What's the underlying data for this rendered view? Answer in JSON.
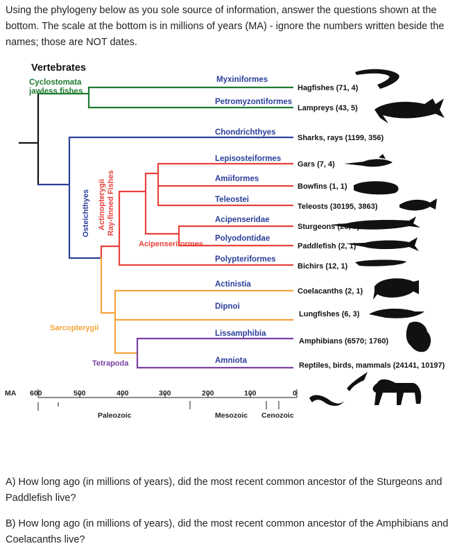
{
  "intro": "Using the phylogeny below as you sole source of information, answer the questions shown at the bottom.  The scale at the bottom is in millions of years (MA) - ignore the numbers written beside the names; those are NOT dates.",
  "tree": {
    "title": "Vertebrates",
    "group_labels": {
      "cyclostomata": "Cyclostomata",
      "jawless": "jawless fishes",
      "osteichthyes": "Osteichthyes",
      "actinopterygii": "Actinopterygii",
      "rayfinned": "Ray-finned Fishes",
      "acipenseriformes": "Acipenseriformes",
      "sarcopterygii": "Sarcopterygii",
      "tetrapoda": "Tetrapoda"
    },
    "branch_labels": {
      "myxiniformes": "Myxiniformes",
      "petromyzontiformes": "Petromyzontiformes",
      "chondrichthyes": "Chondrichthyes",
      "lepisosteiformes": "Lepisosteiformes",
      "amiiformes": "Amiiformes",
      "teleostei": "Teleostei",
      "acipenseridae": "Acipenseridae",
      "polyodontidae": "Polyodontidae",
      "polypteriformes": "Polypteriformes",
      "actinistia": "Actinistia",
      "dipnoi": "Dipnoi",
      "lissamphibia": "Lissamphibia",
      "amniota": "Amniota"
    },
    "taxa": {
      "hagfishes": "Hagfishes (71, 4)",
      "lampreys": "Lampreys (43, 5)",
      "sharks": "Sharks, rays (1199, 356)",
      "gars": "Gars (7, 4)",
      "bowfins": "Bowfins (1, 1)",
      "teleosts": "Teleosts (30195, 3863)",
      "sturgeons": "Sturgeons (26, 7)",
      "paddlefish": "Paddlefish (2, 1)",
      "bichirs": "Bichirs (12, 1)",
      "coelacanths": "Coelacanths (2, 1)",
      "lungfishes": "Lungfishes (6, 3)",
      "amphibians": "Amphibians (6570; 1760)",
      "reptiles": "Reptiles, birds, mammals (24141, 10197)"
    },
    "colors": {
      "jawless": "#1e7a2e",
      "sharks": "#2b3f9a",
      "rayfinned": "#e8413a",
      "sarco": "#f5a33a",
      "tetrapod": "#7b3fa0",
      "root": "#111111"
    },
    "scale": {
      "unit": "MA",
      "ticks": [
        "600",
        "500",
        "400",
        "300",
        "200",
        "100",
        "0"
      ],
      "eras": [
        "Paleozoic",
        "Mesozoic",
        "Cenozoic"
      ]
    }
  },
  "questions": {
    "a": "A) How long ago (in millions of years), did the most recent common ancestor of the Sturgeons and Paddlefish live?",
    "b": "B) How long ago (in millions of years), did the most recent common ancestor of the Amphibians and Coelacanths live?"
  },
  "icons": [
    "hagfish-icon",
    "shark-icon",
    "gar-icon",
    "bowfin-icon",
    "teleost-icon",
    "sturgeon-icon",
    "paddlefish-icon",
    "bichir-icon",
    "coelacanth-icon",
    "lungfish-icon",
    "frog-icon",
    "bird-icon",
    "snake-icon",
    "horse-icon"
  ]
}
